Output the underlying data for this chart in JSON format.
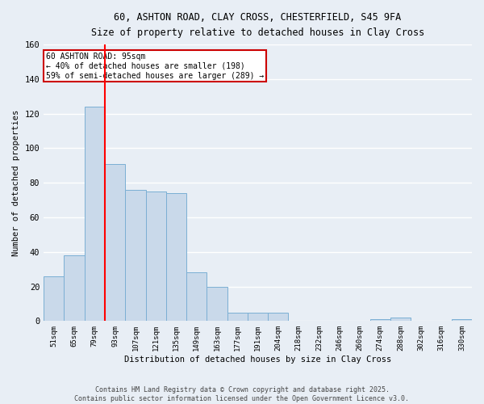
{
  "title_line1": "60, ASHTON ROAD, CLAY CROSS, CHESTERFIELD, S45 9FA",
  "title_line2": "Size of property relative to detached houses in Clay Cross",
  "xlabel": "Distribution of detached houses by size in Clay Cross",
  "ylabel": "Number of detached properties",
  "bar_labels": [
    "51sqm",
    "65sqm",
    "79sqm",
    "93sqm",
    "107sqm",
    "121sqm",
    "135sqm",
    "149sqm",
    "163sqm",
    "177sqm",
    "191sqm",
    "204sqm",
    "218sqm",
    "232sqm",
    "246sqm",
    "260sqm",
    "274sqm",
    "288sqm",
    "302sqm",
    "316sqm",
    "330sqm"
  ],
  "bar_values": [
    26,
    38,
    124,
    91,
    76,
    75,
    74,
    28,
    20,
    5,
    5,
    5,
    0,
    0,
    0,
    0,
    1,
    2,
    0,
    0,
    1
  ],
  "bar_color": "#c9d9ea",
  "bar_edge_color": "#7bafd4",
  "background_color": "#e8eef5",
  "grid_color": "#ffffff",
  "red_line_x": 2.5,
  "annotation_text": "60 ASHTON ROAD: 95sqm\n← 40% of detached houses are smaller (198)\n59% of semi-detached houses are larger (289) →",
  "annotation_box_color": "#ffffff",
  "annotation_box_edge_color": "#cc0000",
  "footer_line1": "Contains HM Land Registry data © Crown copyright and database right 2025.",
  "footer_line2": "Contains public sector information licensed under the Open Government Licence v3.0.",
  "ylim": [
    0,
    160
  ],
  "yticks": [
    0,
    20,
    40,
    60,
    80,
    100,
    120,
    140,
    160
  ]
}
